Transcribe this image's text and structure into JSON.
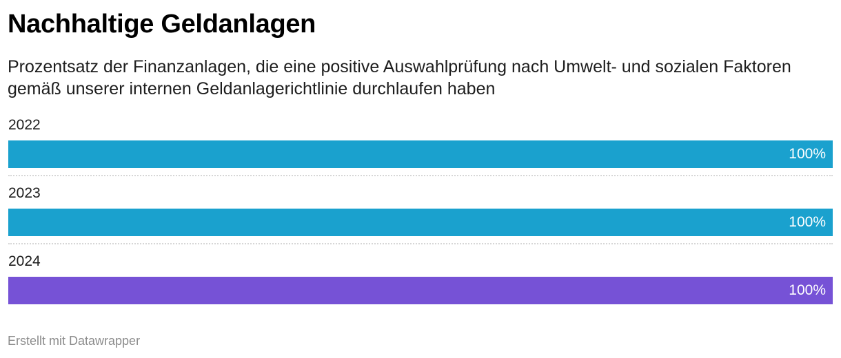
{
  "title": "Nachhaltige Geldanlagen",
  "subtitle": "Prozentsatz der Finanzanlagen, die eine positive Auswahlprüfung nach Umwelt- und sozialen Faktoren gemäß unserer internen Geldanlagerichtlinie durchlaufen haben",
  "footer": "Erstellt mit Datawrapper",
  "chart_data": {
    "type": "bar",
    "orientation": "horizontal",
    "title": "Nachhaltige Geldanlagen",
    "subtitle": "Prozentsatz der Finanzanlagen, die eine positive Auswahlprüfung nach Umwelt- und sozialen Faktoren gemäß unserer internen Geldanlagerichtlinie durchlaufen haben",
    "xlabel": "",
    "ylabel": "",
    "xlim": [
      0,
      100
    ],
    "unit": "%",
    "categories": [
      "2022",
      "2023",
      "2024"
    ],
    "values": [
      100,
      100,
      100
    ],
    "value_labels": [
      "100%",
      "100%",
      "100%"
    ],
    "colors": [
      "#1aa1ce",
      "#1aa1ce",
      "#7652d6"
    ],
    "grid": false,
    "legend": "none"
  }
}
